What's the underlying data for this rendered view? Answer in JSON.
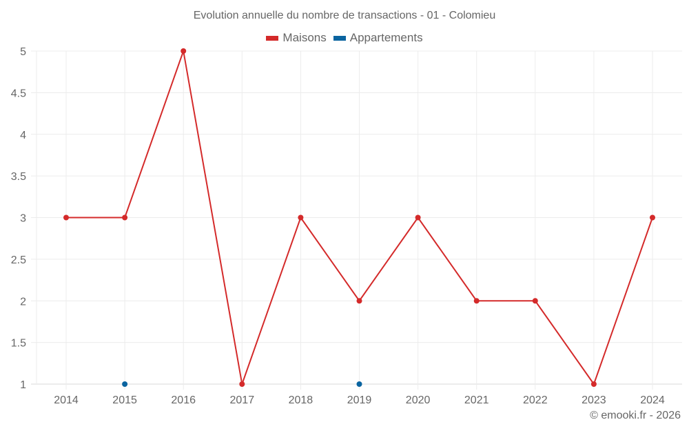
{
  "title": "Evolution annuelle du nombre de transactions - 01 - Colomieu",
  "legend": [
    {
      "label": "Maisons",
      "color": "#d42a2a"
    },
    {
      "label": "Appartements",
      "color": "#0a64a0"
    }
  ],
  "credit": "© emooki.fr - 2026",
  "chart_data": {
    "type": "line",
    "title": "Evolution annuelle du nombre de transactions - 01 - Colomieu",
    "xlabel": "",
    "ylabel": "",
    "categories": [
      "2014",
      "2015",
      "2016",
      "2017",
      "2018",
      "2019",
      "2020",
      "2021",
      "2022",
      "2023",
      "2024"
    ],
    "yticks": [
      "1",
      "1.5",
      "2",
      "2.5",
      "3",
      "3.5",
      "4",
      "4.5",
      "5"
    ],
    "ylim": [
      1,
      5
    ],
    "grid": true,
    "legend_position": "top",
    "series": [
      {
        "name": "Maisons",
        "color": "#d42a2a",
        "values": [
          3,
          3,
          5,
          1,
          3,
          2,
          3,
          2,
          2,
          1,
          3
        ]
      },
      {
        "name": "Appartements",
        "color": "#0a64a0",
        "values": [
          null,
          1,
          null,
          null,
          null,
          1,
          null,
          null,
          null,
          null,
          null
        ]
      }
    ]
  }
}
